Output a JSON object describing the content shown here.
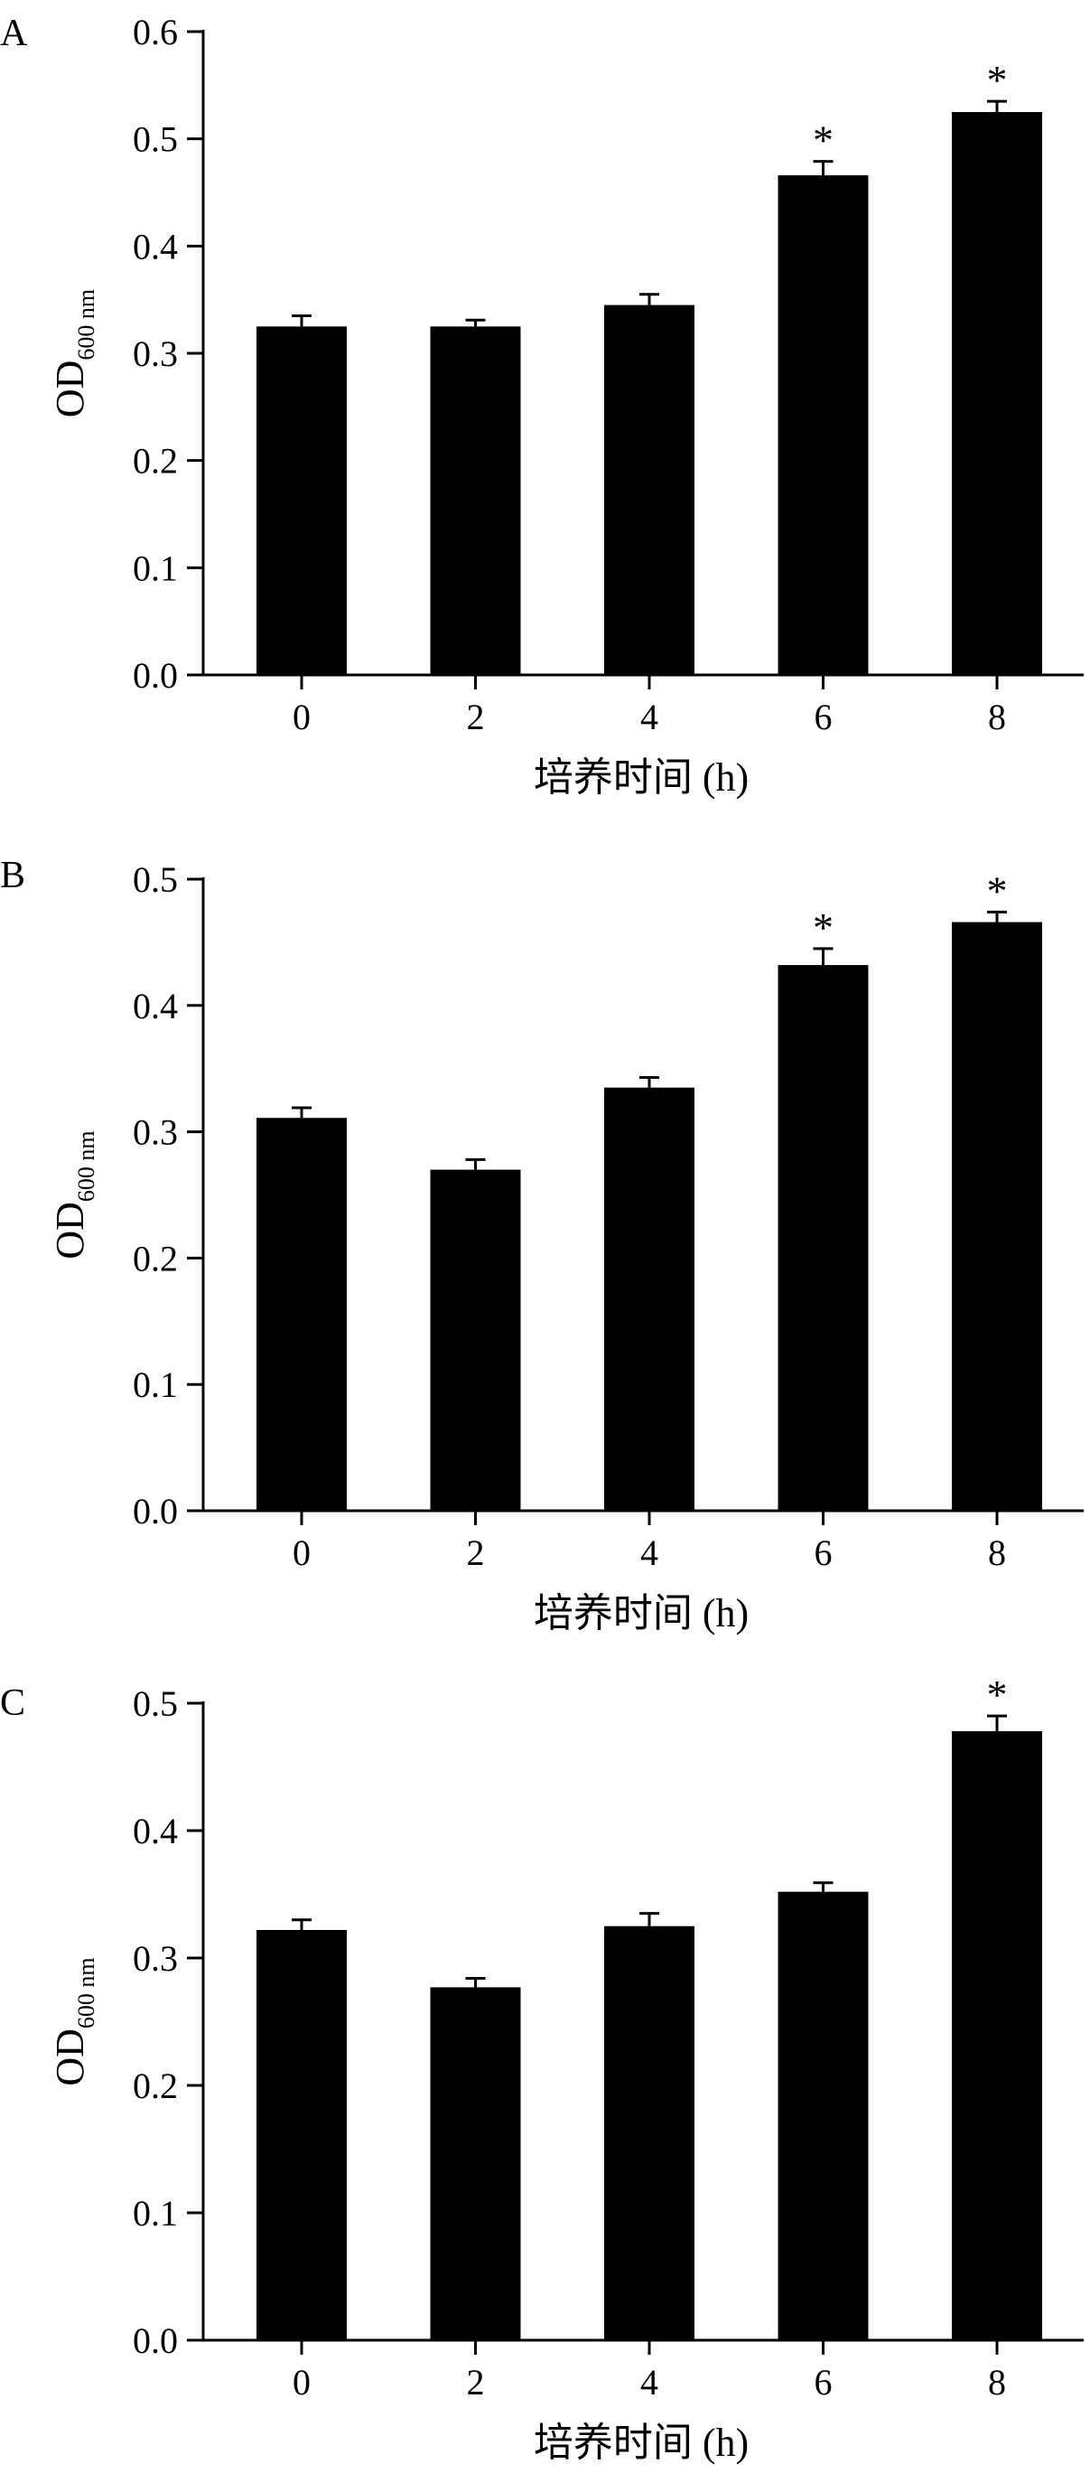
{
  "chart_data": [
    {
      "panel_label": "A",
      "type": "bar",
      "categories": [
        "0",
        "2",
        "4",
        "6",
        "8"
      ],
      "values": [
        0.325,
        0.325,
        0.345,
        0.466,
        0.525
      ],
      "errors": [
        0.01,
        0.006,
        0.01,
        0.013,
        0.01
      ],
      "significant": [
        false,
        false,
        false,
        true,
        true
      ],
      "sig_marker": "*",
      "xlabel": "培养时间 (h)",
      "ylabel_main": "OD",
      "ylabel_sub": "600 nm",
      "ylim": [
        0,
        0.6
      ],
      "yticks": [
        "0.0",
        "0.1",
        "0.2",
        "0.3",
        "0.4",
        "0.5",
        "0.6"
      ],
      "bar_color": "#000000",
      "grid": false,
      "legend": "none"
    },
    {
      "panel_label": "B",
      "type": "bar",
      "categories": [
        "0",
        "2",
        "4",
        "6",
        "8"
      ],
      "values": [
        0.311,
        0.27,
        0.335,
        0.432,
        0.466
      ],
      "errors": [
        0.008,
        0.008,
        0.008,
        0.013,
        0.008
      ],
      "significant": [
        false,
        false,
        false,
        true,
        true
      ],
      "sig_marker": "*",
      "xlabel": "培养时间 (h)",
      "ylabel_main": "OD",
      "ylabel_sub": "600 nm",
      "ylim": [
        0,
        0.5
      ],
      "yticks": [
        "0.0",
        "0.1",
        "0.2",
        "0.3",
        "0.4",
        "0.5"
      ],
      "bar_color": "#000000",
      "grid": false,
      "legend": "none"
    },
    {
      "panel_label": "C",
      "type": "bar",
      "categories": [
        "0",
        "2",
        "4",
        "6",
        "8"
      ],
      "values": [
        0.322,
        0.277,
        0.325,
        0.352,
        0.478
      ],
      "errors": [
        0.008,
        0.007,
        0.01,
        0.007,
        0.012
      ],
      "significant": [
        false,
        false,
        false,
        false,
        true
      ],
      "sig_marker": "*",
      "xlabel": "培养时间 (h)",
      "ylabel_main": "OD",
      "ylabel_sub": "600 nm",
      "ylim": [
        0,
        0.5
      ],
      "yticks": [
        "0.0",
        "0.1",
        "0.2",
        "0.3",
        "0.4",
        "0.5"
      ],
      "bar_color": "#000000",
      "grid": false,
      "legend": "none"
    }
  ]
}
